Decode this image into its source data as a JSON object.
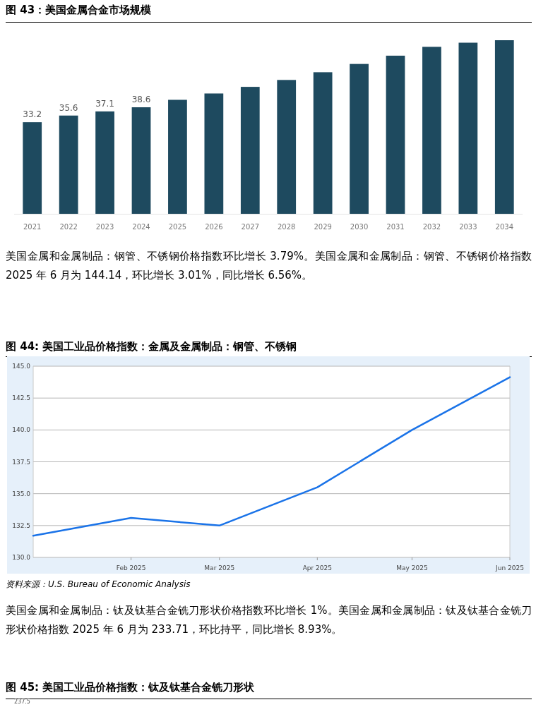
{
  "chart_data": [
    {
      "type": "bar",
      "title": "图 43：美国金属合金市场规模",
      "categories": [
        "2021",
        "2022",
        "2023",
        "2024",
        "2025",
        "2026",
        "2027",
        "2028",
        "2029",
        "2030",
        "2031",
        "2032",
        "2033",
        "2034"
      ],
      "color": "#1e4a5f",
      "values": [
        33.2,
        35.6,
        37.1,
        38.6,
        41.3,
        43.6,
        46.0,
        48.5,
        51.3,
        54.3,
        57.3,
        60.5,
        62.0,
        62.9
      ],
      "value_labels": [
        "33.2",
        "35.6",
        "37.1",
        "38.6",
        null,
        null,
        null,
        null,
        null,
        null,
        null,
        null,
        null,
        null
      ],
      "annotations": [
        "美国金属和金属制品：钢管、不锈钢价格指数环比增长 3.79%。美国金属和金属制品：钢管、不锈钢价格指数 2025 年 6 月为 144.14，环比增长 3.01%，同比增长 6.56%。"
      ]
    },
    {
      "type": "line",
      "title": "图 44: 美国工业品价格指数：金属及金属制品：钢管、不锈钢",
      "color": "#1a73e8",
      "x": [
        "2025-01-01",
        "2025-02-01",
        "2025-03-01",
        "2025-04-01",
        "2025-05-01",
        "2025-06-01"
      ],
      "values": [
        131.7,
        133.1,
        132.5,
        135.5,
        140.0,
        144.14
      ],
      "xlim": [
        "2025-01-01",
        "2025-06-01"
      ],
      "xticks": [
        {
          "value": "2025-02-01",
          "label": "Feb 2025"
        },
        {
          "value": "2025-03-01",
          "label": "Mar 2025"
        },
        {
          "value": "2025-04-01",
          "label": "Apr 2025"
        },
        {
          "value": "2025-05-01",
          "label": "May 2025"
        },
        {
          "value": "2025-06-01",
          "label": "Jun 2025"
        }
      ],
      "ylim": [
        130,
        145
      ],
      "yticks": [
        {
          "value": 130,
          "label": "130.0"
        },
        {
          "value": 132.5,
          "label": "132.5"
        },
        {
          "value": 135,
          "label": "135.0"
        },
        {
          "value": 137.5,
          "label": "137.5"
        },
        {
          "value": 140,
          "label": "140.0"
        },
        {
          "value": 142.5,
          "label": "142.5"
        },
        {
          "value": 145,
          "label": "145.0"
        }
      ],
      "grid": "y",
      "annotations": [
        "资料来源：U.S. Bureau of Economic Analysis",
        "美国金属和金属制品：钛及钛基合金铣刀形状价格指数环比增长 1%。美国金属和金属制品：钛及钛基合金铣刀形状价格指数 2025 年 6 月为 233.71，环比持平，同比增长 8.93%。"
      ]
    },
    {
      "type": "other",
      "title": "图 45: 美国工业品价格指数：钛及钛基合金铣刀形状",
      "annotations": [
        "237.5"
      ]
    }
  ]
}
